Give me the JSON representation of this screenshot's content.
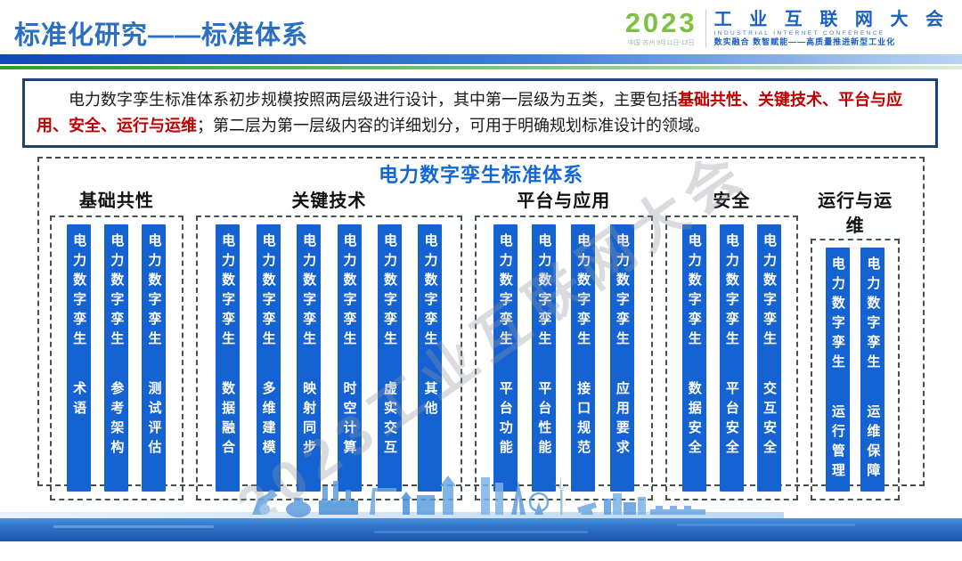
{
  "header": {
    "title": "标准化研究——标准体系",
    "logo": {
      "year": "2023",
      "venue": "中国·苏州 9月11日-13日",
      "name": "工 业 互 联 网 大 会",
      "name_en": "INDUSTRIAL INTERNET CONFERENCE",
      "slogan": "数实融合  数智赋能——高质量推进新型工业化"
    }
  },
  "intro": {
    "part1": "电力数字孪生标准体系初步规模按照两层级进行设计，其中第一层级为五类，主要包括",
    "highlight": "基础共性、关键技术、平台与应用、安全、运行与运维",
    "part2": "；第二层为第一层级内容的详细划分，可用于明确规划标准设计的领域。"
  },
  "diagram": {
    "title": "电力数字孪生标准体系",
    "bar_prefix": "电力数字孪生",
    "groups": [
      {
        "label": "基础共性",
        "items": [
          "术语",
          "参考架构",
          "测试评估"
        ]
      },
      {
        "label": "关键技术",
        "items": [
          "数据融合",
          "多维建模",
          "映射同步",
          "时空计算",
          "虚实交互",
          "其他"
        ]
      },
      {
        "label": "平台与应用",
        "items": [
          "平台功能",
          "平台性能",
          "接口规范",
          "应用要求"
        ]
      },
      {
        "label": "安全",
        "items": [
          "数据安全",
          "平台安全",
          "交互安全"
        ]
      },
      {
        "label": "运行与运维",
        "items": [
          "运行管理",
          "运维保障"
        ]
      }
    ]
  },
  "watermark": "2023工业互联网大会",
  "colors": {
    "bar_blue": "#1562d2",
    "title_blue": "#2b6fc2",
    "diagram_title_blue": "#1366d6",
    "highlight_red": "#c00000",
    "logo_green": "#7cc142",
    "logo_blue": "#1b5fc0",
    "border_navy": "#1f3f77",
    "water_blue": "#1a55ae"
  }
}
